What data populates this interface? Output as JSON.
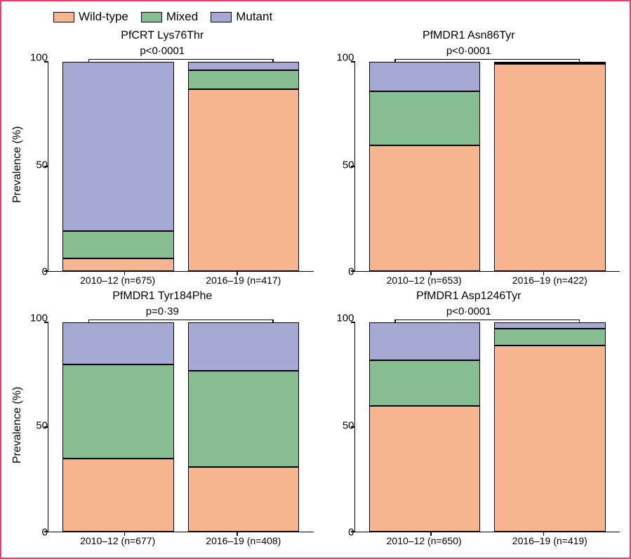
{
  "figure": {
    "border_color": "#d6476f",
    "background": "#ffffff",
    "font_family": "Arial"
  },
  "legend": {
    "items": [
      {
        "label": "Wild-type",
        "color": "#f7b58f"
      },
      {
        "label": "Mixed",
        "color": "#86bd91"
      },
      {
        "label": "Mutant",
        "color": "#a7a9d5"
      }
    ]
  },
  "axis": {
    "y_label": "Prevalence (%)",
    "y_ticks": [
      0,
      50,
      100
    ],
    "ylim": [
      0,
      100
    ],
    "tick_fontsize": 15,
    "label_fontsize": 16
  },
  "series_colors": {
    "wild_type": "#f7b58f",
    "mixed": "#86bd91",
    "mutant": "#a7a9d5"
  },
  "panels": [
    {
      "title": "PfCRT Lys76Thr",
      "p_value": "p<0·0001",
      "bars": [
        {
          "x_label": "2010–12 (n=675)",
          "wild_type": 6,
          "mixed": 13,
          "mutant": 81
        },
        {
          "x_label": "2016–19 (n=417)",
          "wild_type": 87,
          "mixed": 9,
          "mutant": 4
        }
      ]
    },
    {
      "title": "PfMDR1 Asn86Tyr",
      "p_value": "p<0·0001",
      "bars": [
        {
          "x_label": "2010–12 (n=653)",
          "wild_type": 60,
          "mixed": 26,
          "mutant": 14
        },
        {
          "x_label": "2016–19 (n=422)",
          "wild_type": 99,
          "mixed": 0.5,
          "mutant": 0.5
        }
      ]
    },
    {
      "title": "PfMDR1 Tyr184Phe",
      "p_value": "p=0·39",
      "bars": [
        {
          "x_label": "2010–12 (n=677)",
          "wild_type": 35,
          "mixed": 45,
          "mutant": 20
        },
        {
          "x_label": "2016–19 (n=408)",
          "wild_type": 31,
          "mixed": 46,
          "mutant": 23
        }
      ]
    },
    {
      "title": "PfMDR1 Asp1246Tyr",
      "p_value": "p<0·0001",
      "bars": [
        {
          "x_label": "2010–12 (n=650)",
          "wild_type": 60,
          "mixed": 22,
          "mutant": 18
        },
        {
          "x_label": "2016–19 (n=419)",
          "wild_type": 89,
          "mixed": 8,
          "mutant": 3
        }
      ]
    }
  ]
}
